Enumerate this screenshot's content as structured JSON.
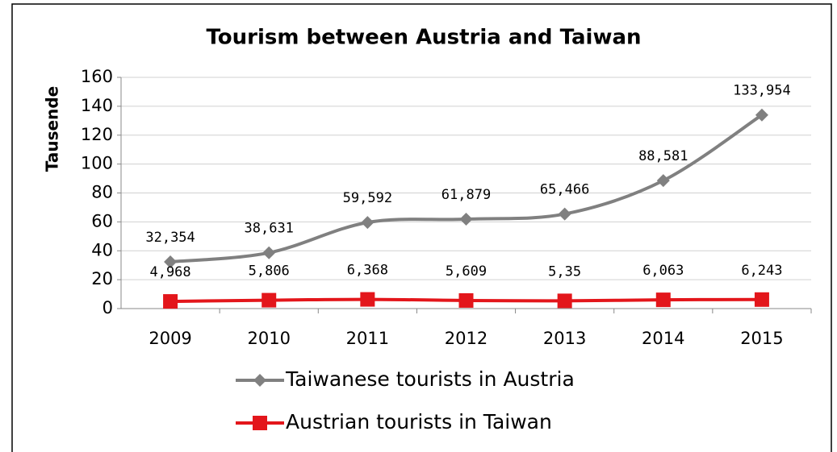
{
  "chart_data": {
    "type": "line",
    "title": "Tourism between Austria and Taiwan",
    "y_label": "Tausende",
    "categories": [
      "2009",
      "2010",
      "2011",
      "2012",
      "2013",
      "2014",
      "2015"
    ],
    "series": [
      {
        "name": "Taiwanese tourists in Austria",
        "color": "#808080",
        "marker": "diamond",
        "values": [
          32.354,
          38.631,
          59.592,
          61.879,
          65.466,
          88.581,
          133.954
        ],
        "value_labels": [
          "32,354",
          "38,631",
          "59,592",
          "61,879",
          "65,466",
          "88,581",
          "133,954"
        ]
      },
      {
        "name": "Austrian tourists in Taiwan",
        "color": "#e3161b",
        "marker": "square",
        "values": [
          4.968,
          5.806,
          6.368,
          5.609,
          5.35,
          6.063,
          6.243
        ],
        "value_labels": [
          "4,968",
          "5,806",
          "6,368",
          "5,609",
          "5,35",
          "6,063",
          "6,243"
        ]
      }
    ],
    "ylim": [
      0,
      160
    ],
    "yticks": [
      0,
      20,
      40,
      60,
      80,
      100,
      120,
      140,
      160
    ],
    "grid": true,
    "smooth": true,
    "legend": "bottom"
  }
}
